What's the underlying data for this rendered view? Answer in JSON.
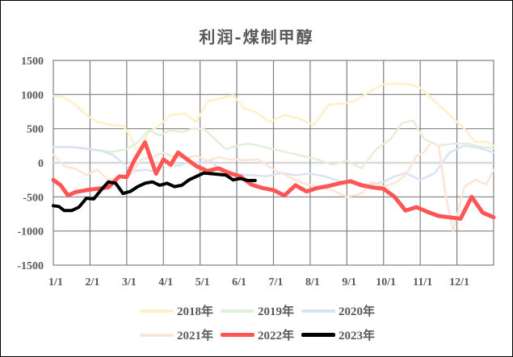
{
  "title": "利润-煤制甲醇",
  "chart_data": {
    "type": "line",
    "title": "利润-煤制甲醇",
    "xlabel": "",
    "ylabel": "",
    "ylim": [
      -1500,
      1500
    ],
    "yticks": [
      1500,
      1000,
      500,
      0,
      -500,
      -1000,
      -1500
    ],
    "xticks": [
      "1/1",
      "2/1",
      "3/1",
      "4/1",
      "5/1",
      "6/1",
      "7/1",
      "8/1",
      "9/1",
      "10/1",
      "11/1",
      "12/1"
    ],
    "x_unit": "month index (0 = 1/1, 12 = end of year)",
    "grid": true,
    "legend_position": "bottom",
    "series": [
      {
        "name": "2018年",
        "color": "#FFF0C8",
        "width": 2.5,
        "x": [
          0,
          0.3,
          0.6,
          0.9,
          1.2,
          1.5,
          1.9,
          2.1,
          2.3,
          2.6,
          2.9,
          3.2,
          3.6,
          3.9,
          4.2,
          4.6,
          4.9,
          5.2,
          5.5,
          5.9,
          6.3,
          6.7,
          7.1,
          7.5,
          7.9,
          8.2,
          8.5,
          8.8,
          9.0,
          9.3,
          9.7,
          10.0,
          10.3,
          10.6,
          10.9,
          11.2,
          11.5,
          11.8,
          12.0
        ],
        "values": [
          980,
          960,
          850,
          700,
          600,
          560,
          540,
          400,
          150,
          450,
          550,
          700,
          720,
          600,
          900,
          950,
          990,
          800,
          750,
          600,
          700,
          650,
          550,
          850,
          870,
          900,
          1000,
          1100,
          1150,
          1160,
          1150,
          1100,
          950,
          800,
          650,
          500,
          300,
          310,
          250
        ]
      },
      {
        "name": "2019年",
        "color": "#E2EFDA",
        "width": 2.5,
        "x": [
          0,
          0.4,
          0.8,
          1.2,
          1.6,
          2.0,
          2.3,
          2.6,
          2.9,
          3.2,
          3.5,
          3.8,
          4.1,
          4.4,
          4.7,
          5.0,
          5.3,
          5.6,
          6.0,
          6.4,
          6.8,
          7.2,
          7.6,
          8.0,
          8.4,
          8.8,
          9.2,
          9.5,
          9.8,
          10.1,
          10.5,
          10.9,
          11.3,
          11.7,
          12.0
        ],
        "values": [
          230,
          230,
          220,
          180,
          160,
          200,
          300,
          480,
          400,
          480,
          450,
          500,
          500,
          350,
          200,
          250,
          280,
          250,
          200,
          150,
          100,
          50,
          -30,
          30,
          -80,
          200,
          350,
          580,
          620,
          350,
          250,
          280,
          280,
          230,
          210
        ]
      },
      {
        "name": "2020年",
        "color": "#DAE3F3",
        "width": 2.5,
        "x": [
          0,
          0.5,
          1.0,
          1.3,
          1.6,
          1.9,
          2.2,
          2.5,
          2.8,
          3.1,
          3.4,
          3.7,
          4.0,
          4.3,
          4.6,
          5.0,
          5.4,
          5.8,
          6.2,
          6.6,
          7.0,
          7.4,
          7.8,
          8.2,
          8.6,
          9.0,
          9.3,
          9.6,
          10.0,
          10.4,
          10.8,
          11.2,
          11.6,
          12.0
        ],
        "values": [
          230,
          230,
          200,
          180,
          120,
          0,
          -120,
          -100,
          -130,
          20,
          -50,
          20,
          0,
          30,
          -150,
          -170,
          -180,
          -200,
          -150,
          -180,
          -160,
          -200,
          -270,
          -300,
          -320,
          -280,
          -200,
          -150,
          -250,
          -150,
          150,
          250,
          220,
          150
        ]
      },
      {
        "name": "2021年",
        "color": "#FCE4D6",
        "width": 2.5,
        "x": [
          0,
          0.3,
          0.6,
          0.9,
          1.2,
          1.5,
          1.8,
          2.1,
          2.4,
          2.7,
          3.0,
          3.3,
          3.6,
          3.9,
          4.2,
          4.5,
          4.8,
          5.2,
          5.6,
          6.0,
          6.4,
          6.8,
          7.2,
          7.6,
          8.0,
          8.4,
          8.7,
          9.0,
          9.3,
          9.6,
          9.9,
          10.1,
          10.3,
          10.5,
          10.7,
          10.9,
          11.2,
          11.5,
          11.8,
          12.0
        ],
        "values": [
          120,
          -50,
          -90,
          -180,
          -100,
          -250,
          -200,
          -180,
          50,
          80,
          150,
          80,
          70,
          100,
          30,
          80,
          50,
          40,
          50,
          -100,
          -200,
          -300,
          -350,
          -400,
          -500,
          -450,
          -280,
          -350,
          -300,
          -180,
          100,
          150,
          300,
          250,
          -500,
          -1000,
          -350,
          -250,
          -320,
          -100
        ]
      },
      {
        "name": "2022年",
        "color": "#FF5555",
        "width": 5,
        "x": [
          0,
          0.2,
          0.4,
          0.6,
          0.9,
          1.2,
          1.5,
          1.8,
          2.0,
          2.2,
          2.5,
          2.8,
          3.0,
          3.2,
          3.4,
          3.6,
          3.9,
          4.2,
          4.5,
          4.8,
          5.1,
          5.4,
          5.7,
          6.0,
          6.3,
          6.6,
          6.9,
          7.2,
          7.5,
          7.8,
          8.1,
          8.4,
          8.7,
          9.0,
          9.3,
          9.6,
          9.9,
          10.2,
          10.5,
          10.8,
          11.1,
          11.4,
          11.7,
          12.0
        ],
        "values": [
          -250,
          -330,
          -480,
          -430,
          -400,
          -380,
          -360,
          -200,
          -210,
          30,
          300,
          -160,
          50,
          -30,
          150,
          70,
          -50,
          -120,
          -80,
          -150,
          -200,
          -320,
          -370,
          -400,
          -480,
          -330,
          -420,
          -370,
          -340,
          -300,
          -270,
          -330,
          -360,
          -380,
          -500,
          -700,
          -650,
          -720,
          -780,
          -800,
          -820,
          -500,
          -730,
          -800
        ]
      },
      {
        "name": "2023年",
        "color": "#000000",
        "width": 4,
        "x": [
          0,
          0.15,
          0.3,
          0.5,
          0.7,
          0.9,
          1.1,
          1.3,
          1.5,
          1.7,
          1.9,
          2.1,
          2.3,
          2.5,
          2.7,
          2.9,
          3.1,
          3.3,
          3.5,
          3.7,
          3.9,
          4.1,
          4.3,
          4.5,
          4.7,
          4.9,
          5.1,
          5.3,
          5.5
        ],
        "values": [
          -630,
          -640,
          -700,
          -700,
          -650,
          -520,
          -530,
          -400,
          -280,
          -300,
          -450,
          -420,
          -350,
          -300,
          -280,
          -330,
          -300,
          -350,
          -330,
          -250,
          -200,
          -150,
          -160,
          -170,
          -180,
          -250,
          -230,
          -260,
          -260
        ]
      }
    ]
  },
  "legend": [
    {
      "label": "2018年",
      "color": "#FFF0C8"
    },
    {
      "label": "2019年",
      "color": "#E2EFDA"
    },
    {
      "label": "2020年",
      "color": "#DAE3F3"
    },
    {
      "label": "2021年",
      "color": "#FCE4D6"
    },
    {
      "label": "2022年",
      "color": "#FF5555"
    },
    {
      "label": "2023年",
      "color": "#000000"
    }
  ]
}
